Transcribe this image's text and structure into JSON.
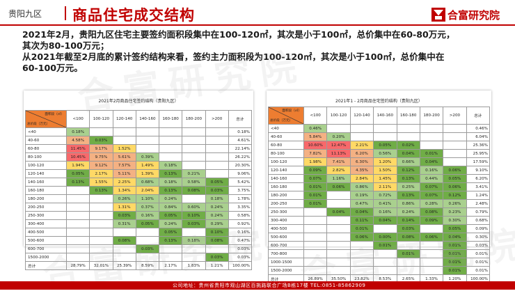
{
  "header": {
    "region": "贵阳九区",
    "title": "商品住宅成交结构",
    "logo_text": "合富研究院"
  },
  "summary_lines": [
    "2021年2月，贵阳九区住宅主要签约面积段集中在100-120㎡，其次是小于100㎡，总价集中在60-80万元，",
    "其次为80-100万元；",
    "从2021年截至2月底的累计签约结构来看，签约主力面积段为100-120㎡，其次是小于100㎡，总价集中在",
    "60-100万元。"
  ],
  "watermark_text": "合富研究院",
  "colors": {
    "brand_red": "#c00000",
    "cell_green": "#70ad47",
    "cell_light_green": "#a9d08e",
    "cell_yellow": "#ffd966",
    "cell_orange": "#f4b183",
    "cell_red": "#f8696b",
    "header_orange": "#ed7d31"
  },
  "table_left": {
    "title": "2021年2月商品住宅签约结构（贵阳九区）",
    "corner_top": "面积段（㎡）",
    "corner_bottom": "总价段（万元）",
    "columns": [
      "<100",
      "100-120",
      "120-140",
      "140-160",
      "160-180",
      "180-200",
      ">200",
      "总计"
    ],
    "rows": [
      {
        "label": "<40",
        "cells": [
          "0.18%",
          "",
          "",
          "",
          "",
          "",
          ""
        ],
        "total": "0.18%"
      },
      {
        "label": "40-60",
        "cells": [
          "4.58%",
          "0.03%",
          "",
          "",
          "",
          "",
          ""
        ],
        "total": "4.61%"
      },
      {
        "label": "60-80",
        "cells": [
          "11.45%",
          "9.17%",
          "1.52%",
          "",
          "",
          "",
          ""
        ],
        "total": "22.14%"
      },
      {
        "label": "80-100",
        "cells": [
          "10.45%",
          "9.75%",
          "5.61%",
          "0.39%",
          "",
          "",
          ""
        ],
        "total": "26.22%"
      },
      {
        "label": "100-120",
        "cells": [
          "1.94%",
          "9.12%",
          "7.57%",
          "1.49%",
          "0.18%",
          "",
          ""
        ],
        "total": "20.30%"
      },
      {
        "label": "120-140",
        "cells": [
          "0.05%",
          "2.17%",
          "5.11%",
          "1.39%",
          "0.13%",
          "0.21%",
          ""
        ],
        "total": "9.06%"
      },
      {
        "label": "140-160",
        "cells": [
          "0.13%",
          "1.55%",
          "2.25%",
          "0.68%",
          "0.18%",
          "0.58%",
          "0.05%"
        ],
        "total": "5.42%"
      },
      {
        "label": "160-180",
        "cells": [
          "",
          "0.13%",
          "1.34%",
          "2.04%",
          "0.13%",
          "0.08%",
          "0.03%"
        ],
        "total": "3.75%"
      },
      {
        "label": "180-200",
        "cells": [
          "",
          "",
          "0.26%",
          "1.10%",
          "0.24%",
          "",
          "0.18%"
        ],
        "total": "1.78%"
      },
      {
        "label": "200-250",
        "cells": [
          "",
          "",
          "1.31%",
          "0.37%",
          "0.84%",
          "0.60%",
          "0.24%"
        ],
        "total": "3.35%"
      },
      {
        "label": "250-300",
        "cells": [
          "",
          "",
          "0.03%",
          "0.16%",
          "0.05%",
          "0.10%",
          "0.24%"
        ],
        "total": "0.58%"
      },
      {
        "label": "300-400",
        "cells": [
          "",
          "",
          "0.31%",
          "0.05%",
          "0.24%",
          "0.03%",
          "0.29%"
        ],
        "total": "0.92%"
      },
      {
        "label": "400-500",
        "cells": [
          "",
          "",
          "",
          "",
          "0.05%",
          "",
          "0.10%"
        ],
        "total": "0.16%"
      },
      {
        "label": "500-600",
        "cells": [
          "",
          "",
          "0.08%",
          "",
          "0.13%",
          "0.18%",
          "0.08%"
        ],
        "total": "0.47%"
      },
      {
        "label": "600-700",
        "cells": [
          "",
          "",
          "",
          "0.03%",
          "",
          "",
          ""
        ],
        "total": "0.03%"
      },
      {
        "label": "1500-2000",
        "cells": [
          "",
          "",
          "",
          "",
          "",
          "",
          "0.03%"
        ],
        "total": "0.03%"
      }
    ],
    "footer_label": "总计",
    "footer": [
      "28.79%",
      "32.01%",
      "25.39%",
      "8.59%",
      "2.17%",
      "1.83%",
      "1.21%"
    ],
    "footer_total": "100.00%"
  },
  "table_right": {
    "title": "2021年1 - 2月商品住宅签约结构（贵阳九区）",
    "corner_top": "面积段（㎡）",
    "corner_bottom": "总价段（万元）",
    "columns": [
      "<100",
      "100-120",
      "120-140",
      "140-160",
      "160-180",
      "180-200",
      ">200",
      "总计"
    ],
    "rows": [
      {
        "label": "<40",
        "cells": [
          "0.46%",
          "",
          "",
          "",
          "",
          "",
          ""
        ],
        "total": "0.46%"
      },
      {
        "label": "40-60",
        "cells": [
          "5.84%",
          "0.20%",
          "",
          "",
          "",
          "",
          ""
        ],
        "total": "6.04%"
      },
      {
        "label": "60-80",
        "cells": [
          "10.60%",
          "12.47%",
          "2.21%",
          "0.05%",
          "0.02%",
          "",
          ""
        ],
        "total": "25.36%"
      },
      {
        "label": "80-100",
        "cells": [
          "7.82%",
          "11.13%",
          "6.20%",
          "0.56%",
          "0.04%",
          "0.01%",
          ""
        ],
        "total": "25.95%"
      },
      {
        "label": "100-120",
        "cells": [
          "1.98%",
          "7.41%",
          "6.30%",
          "1.20%",
          "0.66%",
          "0.04%",
          ""
        ],
        "total": "17.59%"
      },
      {
        "label": "120-140",
        "cells": [
          "0.09%",
          "2.82%",
          "4.35%",
          "1.50%",
          "0.12%",
          "0.16%",
          "0.06%"
        ],
        "total": "9.10%"
      },
      {
        "label": "140-160",
        "cells": [
          "0.07%",
          "1.16%",
          "2.84%",
          "1.45%",
          "0.13%",
          "0.44%",
          "0.05%"
        ],
        "total": "6.20%"
      },
      {
        "label": "160-180",
        "cells": [
          "0.01%",
          "0.06%",
          "0.86%",
          "2.11%",
          "0.25%",
          "0.07%",
          "0.06%"
        ],
        "total": "3.41%"
      },
      {
        "label": "180-200",
        "cells": [
          "0.01%",
          "",
          "0.19%",
          "0.72%",
          "0.13%",
          "0.07%",
          "0.12%"
        ],
        "total": "1.24%"
      },
      {
        "label": "200-250",
        "cells": [
          "0.01%",
          "",
          "0.47%",
          "0.41%",
          "0.86%",
          "0.28%",
          "0.26%"
        ],
        "total": "2.48%"
      },
      {
        "label": "250-300",
        "cells": [
          "",
          "0.04%",
          "0.04%",
          "0.16%",
          "0.24%",
          "0.08%",
          "0.23%"
        ],
        "total": "0.79%"
      },
      {
        "label": "300-400",
        "cells": [
          "",
          "",
          "0.11%",
          "0.04%",
          "0.14%",
          "0.09%",
          "0.30%"
        ],
        "total": "0.68%"
      },
      {
        "label": "400-500",
        "cells": [
          "",
          "",
          "0.01%",
          "",
          "0.03%",
          "",
          "0.05%"
        ],
        "total": "0.09%"
      },
      {
        "label": "500-600",
        "cells": [
          "",
          "",
          "0.06%",
          "0.00%",
          "0.08%",
          "0.06%",
          "0.04%"
        ],
        "total": "0.30%"
      },
      {
        "label": "600-700",
        "cells": [
          "",
          "",
          "",
          "0.01%",
          "",
          "",
          "0.01%"
        ],
        "total": "0.03%"
      },
      {
        "label": "700-800",
        "cells": [
          "",
          "",
          "",
          "",
          "0.01%",
          "",
          "0.01%"
        ],
        "total": "0.01%"
      },
      {
        "label": "1000-1500",
        "cells": [
          "",
          "",
          "",
          "",
          "",
          "",
          "0.01%"
        ],
        "total": "0.01%"
      },
      {
        "label": "1500-2000",
        "cells": [
          "",
          "",
          "",
          "",
          "",
          "",
          "0.01%"
        ],
        "total": "0.01%"
      }
    ],
    "footer_label": "总计",
    "footer": [
      "26.89%",
      "35.50%",
      "23.82%",
      "8.53%",
      "2.65%",
      "1.33%",
      "1.20%"
    ],
    "footer_total": "100.00%"
  },
  "footer": {
    "text": "公司地址：贵州省贵阳市观山湖区百挑路联合广场B栋17楼   TEL:0851-85862909"
  }
}
